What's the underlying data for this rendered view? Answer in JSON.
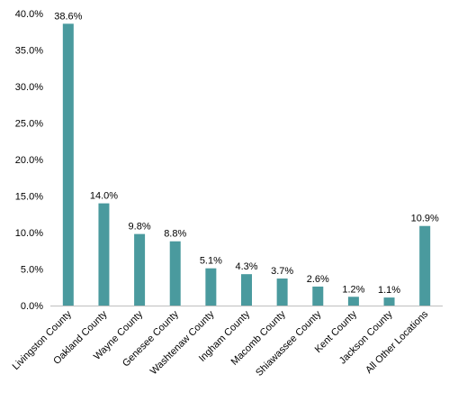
{
  "chart_data": {
    "type": "bar",
    "categories": [
      "Livingston County",
      "Oakland County",
      "Wayne County",
      "Genesee County",
      "Washtenaw County",
      "Ingham County",
      "Macomb County",
      "Shiawassee County",
      "Kent County",
      "Jackson County",
      "All Other Locations"
    ],
    "values": [
      38.6,
      14.0,
      9.8,
      8.8,
      5.1,
      4.3,
      3.7,
      2.6,
      1.2,
      1.1,
      10.9
    ],
    "value_labels": [
      "38.6%",
      "14.0%",
      "9.8%",
      "8.8%",
      "5.1%",
      "4.3%",
      "3.7%",
      "2.6%",
      "1.2%",
      "1.1%",
      "10.9%"
    ],
    "y_ticks": [
      0,
      5,
      10,
      15,
      20,
      25,
      30,
      35,
      40
    ],
    "y_tick_labels": [
      "0.0%",
      "5.0%",
      "10.0%",
      "15.0%",
      "20.0%",
      "25.0%",
      "30.0%",
      "35.0%",
      "40.0%"
    ],
    "ylim": [
      0,
      40
    ],
    "grid": false,
    "legend": "none",
    "title": "",
    "xlabel": "",
    "ylabel": "",
    "bar_color": "#4a9a9e",
    "axis_color": "#bfbfbf",
    "text_color": "#000000"
  }
}
